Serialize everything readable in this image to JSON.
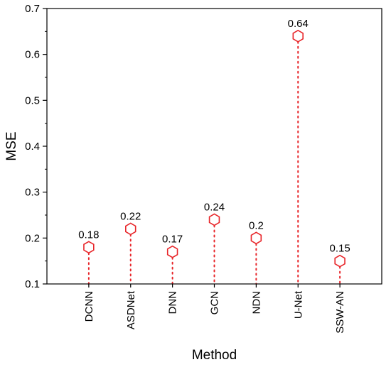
{
  "chart_data": {
    "type": "scatter",
    "title": "",
    "xlabel": "Method",
    "ylabel": "MSE",
    "categories": [
      "DCNN",
      "ASDNet",
      "DNN",
      "GCN",
      "NDN",
      "U-Net",
      "SSW-AN"
    ],
    "values": [
      0.18,
      0.22,
      0.17,
      0.24,
      0.2,
      0.64,
      0.15
    ],
    "value_labels": [
      "0.18",
      "0.22",
      "0.17",
      "0.24",
      "0.2",
      "0.64",
      "0.15"
    ],
    "ylim": [
      0.1,
      0.7
    ],
    "yticks": [
      "0.1",
      "0.2",
      "0.3",
      "0.4",
      "0.5",
      "0.6",
      "0.7"
    ],
    "marker": "hexagon-open",
    "drop_lines": "dotted",
    "color": "#e8262a",
    "grid": false,
    "legend": "none"
  }
}
